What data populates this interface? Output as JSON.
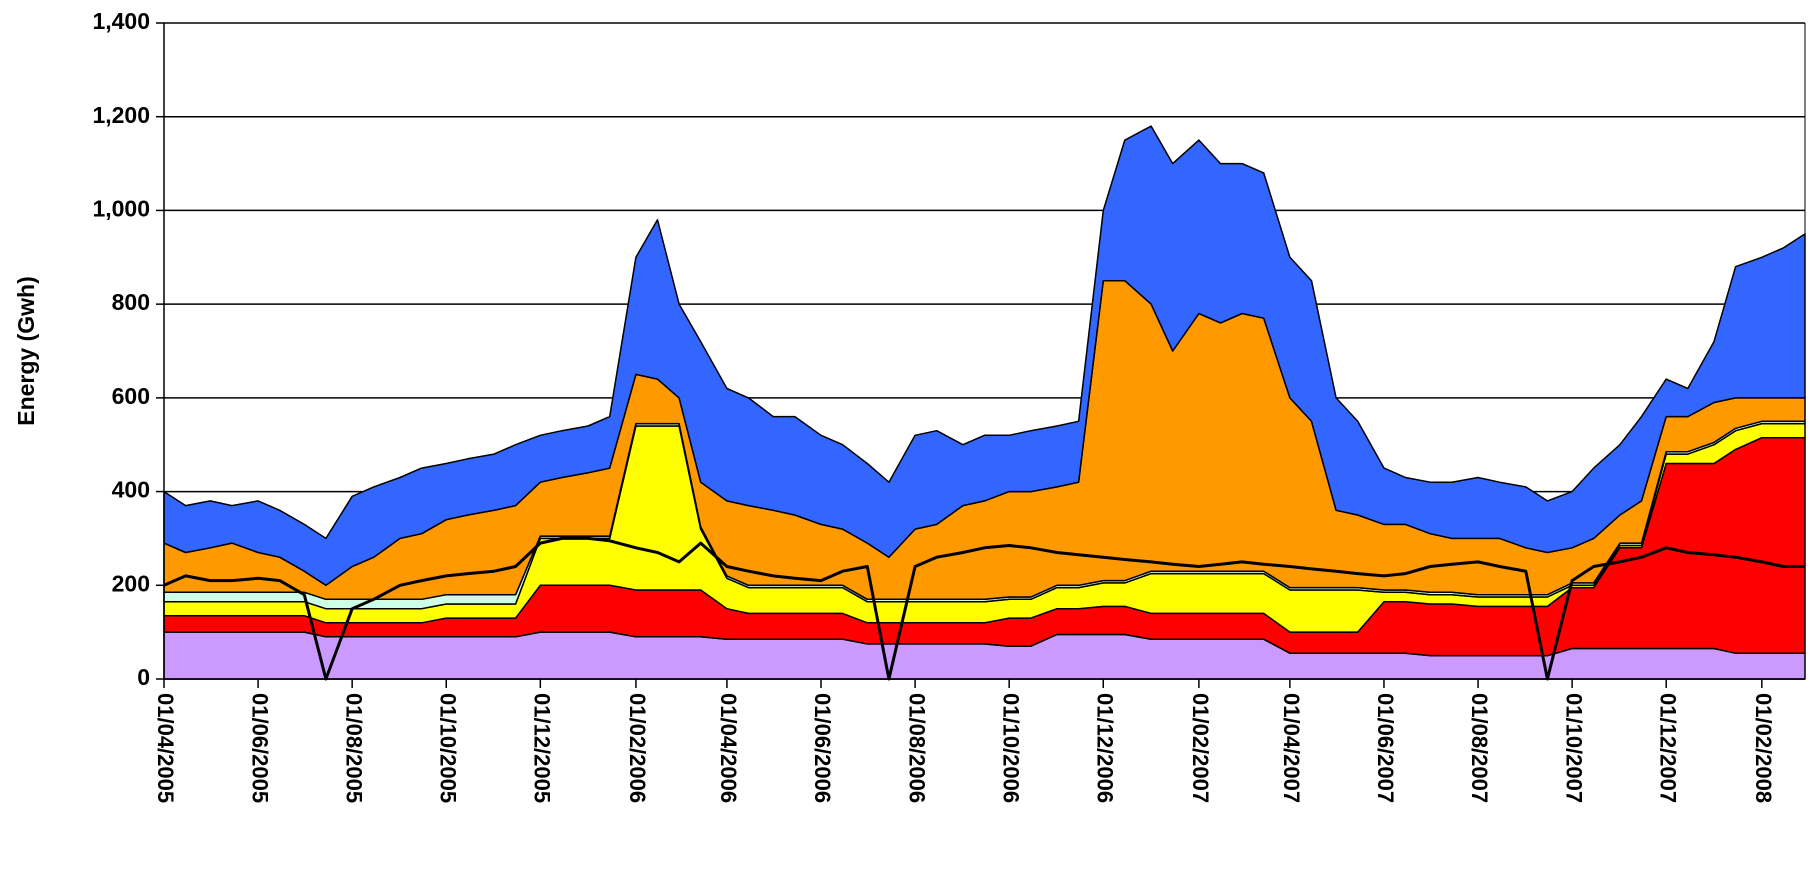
{
  "chart_data": {
    "type": "stacked_area",
    "ylabel": "Energy (Gwh)",
    "x": [
      "01/04/2005",
      "15/04/2005",
      "01/05/2005",
      "15/05/2005",
      "01/06/2005",
      "15/06/2005",
      "01/07/2005",
      "15/07/2005",
      "01/08/2005",
      "15/08/2005",
      "01/09/2005",
      "15/09/2005",
      "01/10/2005",
      "15/10/2005",
      "01/11/2005",
      "15/11/2005",
      "01/12/2005",
      "15/12/2005",
      "01/01/2006",
      "15/01/2006",
      "01/02/2006",
      "15/02/2006",
      "01/03/2006",
      "15/03/2006",
      "01/04/2006",
      "15/04/2006",
      "01/05/2006",
      "15/05/2006",
      "01/06/2006",
      "15/06/2006",
      "01/07/2006",
      "15/07/2006",
      "01/08/2006",
      "15/08/2006",
      "01/09/2006",
      "15/09/2006",
      "01/10/2006",
      "15/10/2006",
      "01/11/2006",
      "15/11/2006",
      "01/12/2006",
      "15/12/2006",
      "01/01/2007",
      "15/01/2007",
      "01/02/2007",
      "15/02/2007",
      "01/03/2007",
      "15/03/2007",
      "01/04/2007",
      "15/04/2007",
      "01/05/2007",
      "15/05/2007",
      "01/06/2007",
      "15/06/2007",
      "01/07/2007",
      "15/07/2007",
      "01/08/2007",
      "15/08/2007",
      "01/09/2007",
      "15/09/2007",
      "01/10/2007",
      "15/10/2007",
      "01/11/2007",
      "15/11/2007",
      "01/12/2007",
      "15/12/2007",
      "01/01/2008",
      "15/01/2008",
      "01/02/2008",
      "15/02/2008",
      "29/02/2008"
    ],
    "series": [
      {
        "color": "#cc99ff",
        "values": [
          100,
          100,
          100,
          100,
          100,
          100,
          100,
          90,
          90,
          90,
          90,
          90,
          90,
          90,
          90,
          90,
          100,
          100,
          100,
          100,
          90,
          90,
          90,
          90,
          85,
          85,
          85,
          85,
          85,
          85,
          75,
          75,
          75,
          75,
          75,
          75,
          70,
          70,
          95,
          95,
          95,
          95,
          85,
          85,
          85,
          85,
          85,
          85,
          55,
          55,
          55,
          55,
          55,
          55,
          50,
          50,
          50,
          50,
          50,
          50,
          65,
          65,
          65,
          65,
          65,
          65,
          65,
          55,
          55,
          55,
          55
        ]
      },
      {
        "color": "#ff0000",
        "values": [
          35,
          35,
          35,
          35,
          35,
          35,
          35,
          30,
          30,
          30,
          30,
          30,
          40,
          40,
          40,
          40,
          100,
          100,
          100,
          100,
          100,
          100,
          100,
          100,
          65,
          55,
          55,
          55,
          55,
          55,
          45,
          45,
          45,
          45,
          45,
          45,
          60,
          60,
          55,
          55,
          60,
          60,
          55,
          55,
          55,
          55,
          55,
          55,
          45,
          45,
          45,
          45,
          110,
          110,
          110,
          110,
          105,
          105,
          105,
          105,
          130,
          130,
          215,
          215,
          395,
          395,
          395,
          435,
          460,
          460,
          460
        ]
      },
      {
        "color": "#ffff00",
        "values": [
          30,
          30,
          30,
          30,
          30,
          30,
          30,
          30,
          30,
          30,
          30,
          30,
          30,
          30,
          30,
          30,
          100,
          100,
          100,
          100,
          350,
          350,
          350,
          130,
          65,
          55,
          55,
          55,
          55,
          55,
          45,
          45,
          45,
          45,
          45,
          45,
          40,
          40,
          45,
          45,
          50,
          50,
          85,
          85,
          85,
          85,
          85,
          85,
          90,
          90,
          90,
          90,
          20,
          20,
          20,
          20,
          20,
          20,
          20,
          20,
          5,
          5,
          5,
          5,
          20,
          20,
          40,
          40,
          30,
          30,
          30
        ]
      },
      {
        "color": "#ccffe6",
        "values": [
          20,
          20,
          20,
          20,
          20,
          20,
          20,
          20,
          20,
          20,
          20,
          20,
          20,
          20,
          20,
          20,
          5,
          5,
          5,
          5,
          5,
          5,
          5,
          5,
          5,
          5,
          5,
          5,
          5,
          5,
          5,
          5,
          5,
          5,
          5,
          5,
          5,
          5,
          5,
          5,
          5,
          5,
          5,
          5,
          5,
          5,
          5,
          5,
          5,
          5,
          5,
          5,
          5,
          5,
          5,
          5,
          5,
          5,
          5,
          5,
          5,
          5,
          5,
          5,
          5,
          5,
          5,
          5,
          5,
          5,
          5
        ]
      },
      {
        "color": "#ff9900",
        "values": [
          105,
          85,
          95,
          105,
          85,
          75,
          45,
          30,
          70,
          90,
          130,
          140,
          160,
          170,
          180,
          190,
          115,
          125,
          135,
          145,
          105,
          95,
          55,
          95,
          160,
          170,
          160,
          150,
          130,
          120,
          120,
          90,
          150,
          160,
          200,
          210,
          225,
          225,
          210,
          220,
          640,
          640,
          570,
          470,
          550,
          530,
          550,
          540,
          405,
          355,
          165,
          155,
          140,
          140,
          125,
          115,
          120,
          120,
          100,
          90,
          75,
          95,
          60,
          90,
          75,
          75,
          85,
          65,
          50,
          50,
          50
        ]
      },
      {
        "color": "#3366ff",
        "values": [
          110,
          100,
          100,
          80,
          110,
          100,
          100,
          100,
          150,
          150,
          130,
          140,
          120,
          120,
          120,
          130,
          100,
          100,
          100,
          110,
          250,
          340,
          200,
          300,
          240,
          230,
          200,
          210,
          190,
          180,
          170,
          160,
          200,
          200,
          130,
          140,
          120,
          130,
          130,
          130,
          150,
          300,
          380,
          400,
          370,
          340,
          320,
          310,
          300,
          300,
          240,
          200,
          120,
          100,
          110,
          120,
          130,
          120,
          130,
          110,
          120,
          150,
          150,
          180,
          80,
          60,
          130,
          280,
          300,
          320,
          350
        ]
      }
    ],
    "line": {
      "color": "#000000",
      "values": [
        200,
        220,
        210,
        210,
        215,
        210,
        180,
        0,
        150,
        170,
        200,
        210,
        220,
        225,
        230,
        240,
        290,
        300,
        300,
        295,
        280,
        270,
        250,
        290,
        240,
        230,
        220,
        215,
        210,
        230,
        240,
        0,
        240,
        260,
        270,
        280,
        285,
        280,
        270,
        265,
        260,
        255,
        250,
        245,
        240,
        245,
        250,
        245,
        240,
        235,
        230,
        225,
        220,
        225,
        240,
        245,
        250,
        240,
        230,
        0,
        210,
        240,
        250,
        260,
        280,
        270,
        265,
        260,
        250,
        240,
        240
      ]
    },
    "xlim": [
      "01/04/2005",
      "29/02/2008"
    ],
    "xticks": [
      "01/04/2005",
      "01/06/2005",
      "01/08/2005",
      "01/10/2005",
      "01/12/2005",
      "01/02/2006",
      "01/04/2006",
      "01/06/2006",
      "01/08/2006",
      "01/10/2006",
      "01/12/2006",
      "01/02/2007",
      "01/04/2007",
      "01/06/2007",
      "01/08/2007",
      "01/10/2007",
      "01/12/2007",
      "01/02/2008"
    ],
    "ylim": [
      0,
      1400
    ],
    "yticks": [
      0,
      200,
      400,
      600,
      800,
      {
        "value": 1000,
        "label": "1,000"
      },
      {
        "value": 1200,
        "label": "1,200"
      },
      {
        "value": 1400,
        "label": "1,400"
      }
    ],
    "grid": true
  }
}
